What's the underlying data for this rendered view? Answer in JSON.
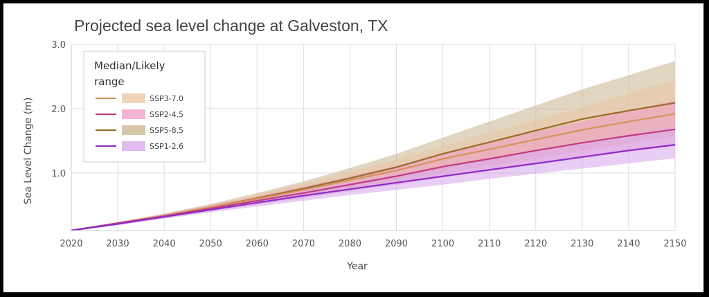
{
  "chart_data": {
    "type": "area",
    "title": "Projected sea level change at Galveston, TX",
    "xlabel": "Year",
    "ylabel": "Sea Level Change (m)",
    "xlim": [
      2020,
      2150
    ],
    "ylim": [
      0,
      3.0
    ],
    "x_ticks": [
      "2020",
      "2030",
      "2040",
      "2050",
      "2060",
      "2070",
      "2080",
      "2090",
      "2100",
      "2110",
      "2120",
      "2130",
      "2140",
      "2150"
    ],
    "y_ticks": [
      "1.0",
      "2.0",
      "3.0"
    ],
    "grid": true,
    "legend": {
      "title": "Median/Likely range",
      "position": "top-left",
      "entries": [
        "SSP3-7.0",
        "SSP2-4.5",
        "SSP5-8.5",
        "SSP1-2.6"
      ]
    },
    "x": [
      2020,
      2030,
      2040,
      2050,
      2060,
      2070,
      2080,
      2090,
      2100,
      2110,
      2120,
      2130,
      2140,
      2150
    ],
    "series": [
      {
        "name": "SSP5-8.5",
        "color": "#9a6b25",
        "band_color": "#c8b48e",
        "median": [
          0.11,
          0.22,
          0.34,
          0.47,
          0.61,
          0.76,
          0.92,
          1.09,
          1.3,
          1.48,
          1.66,
          1.84,
          1.97,
          2.09
        ],
        "low": [
          0.1,
          0.2,
          0.31,
          0.42,
          0.53,
          0.65,
          0.77,
          0.9,
          1.05,
          1.19,
          1.33,
          1.47,
          1.59,
          1.71
        ],
        "high": [
          0.12,
          0.24,
          0.37,
          0.52,
          0.69,
          0.87,
          1.08,
          1.3,
          1.55,
          1.8,
          2.05,
          2.3,
          2.52,
          2.74
        ]
      },
      {
        "name": "SSP3-7.0",
        "color": "#d4915a",
        "band_color": "#ebc4a2",
        "median": [
          0.11,
          0.22,
          0.34,
          0.47,
          0.6,
          0.74,
          0.89,
          1.04,
          1.22,
          1.37,
          1.52,
          1.67,
          1.8,
          1.92
        ],
        "low": [
          0.1,
          0.2,
          0.31,
          0.42,
          0.53,
          0.64,
          0.75,
          0.87,
          0.99,
          1.11,
          1.23,
          1.35,
          1.46,
          1.57
        ],
        "high": [
          0.12,
          0.24,
          0.37,
          0.51,
          0.67,
          0.84,
          1.02,
          1.21,
          1.42,
          1.62,
          1.82,
          2.02,
          2.24,
          2.44
        ]
      },
      {
        "name": "SSP2-4.5",
        "color": "#c23b7f",
        "band_color": "#ee9ac7",
        "median": [
          0.11,
          0.22,
          0.33,
          0.45,
          0.57,
          0.69,
          0.82,
          0.95,
          1.1,
          1.22,
          1.35,
          1.47,
          1.58,
          1.68
        ],
        "low": [
          0.1,
          0.2,
          0.3,
          0.41,
          0.51,
          0.61,
          0.72,
          0.82,
          0.93,
          1.03,
          1.13,
          1.23,
          1.33,
          1.42
        ],
        "high": [
          0.12,
          0.24,
          0.36,
          0.5,
          0.64,
          0.79,
          0.95,
          1.11,
          1.3,
          1.47,
          1.64,
          1.8,
          1.97,
          2.13
        ]
      },
      {
        "name": "SSP1-2.6",
        "color": "#8e2cc7",
        "band_color": "#d6a6ec",
        "median": [
          0.11,
          0.21,
          0.32,
          0.43,
          0.54,
          0.65,
          0.75,
          0.85,
          0.95,
          1.05,
          1.15,
          1.25,
          1.35,
          1.44
        ],
        "low": [
          0.1,
          0.19,
          0.29,
          0.39,
          0.48,
          0.57,
          0.66,
          0.74,
          0.82,
          0.91,
          0.99,
          1.07,
          1.15,
          1.23
        ],
        "high": [
          0.12,
          0.23,
          0.35,
          0.47,
          0.59,
          0.72,
          0.85,
          0.97,
          1.1,
          1.22,
          1.35,
          1.47,
          1.6,
          1.72
        ]
      }
    ]
  }
}
